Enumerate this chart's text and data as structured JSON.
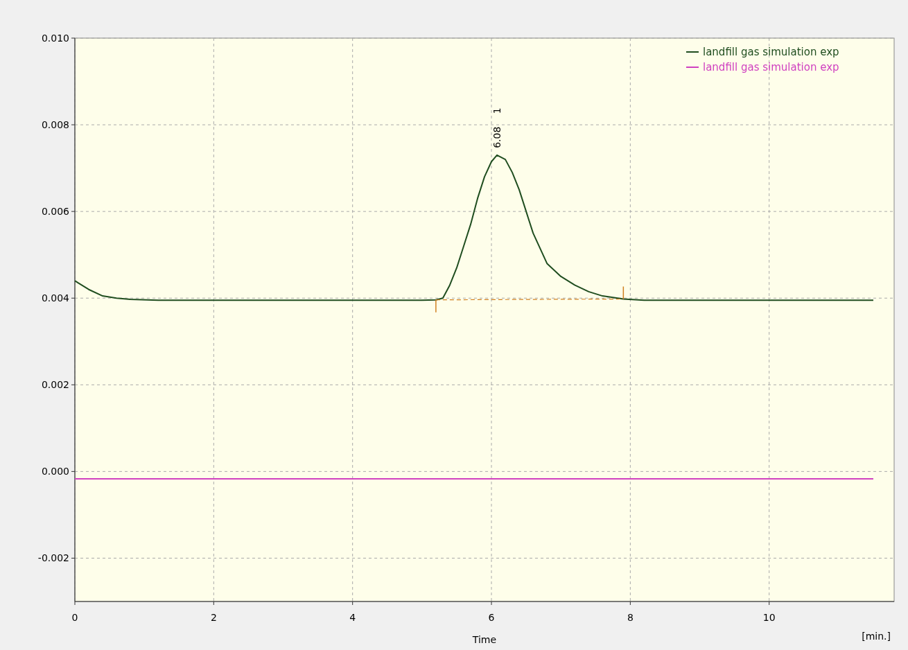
{
  "chart_data": {
    "type": "line",
    "xlabel": "Time",
    "xlim": [
      0,
      11.8
    ],
    "xticks": [
      0,
      2,
      4,
      6,
      8,
      10
    ],
    "ylim": [
      -0.003,
      0.01
    ],
    "yticks": [
      {
        "value": -0.002,
        "label": "-0.002"
      },
      {
        "value": 0,
        "label": "0.000"
      },
      {
        "value": 0.002,
        "label": "0.002"
      },
      {
        "value": 0.004,
        "label": "0.004"
      },
      {
        "value": 0.006,
        "label": "0.006"
      },
      {
        "value": 0.008,
        "label": "0.008"
      },
      {
        "value": 0.01,
        "label": "0.010"
      }
    ],
    "grid": true,
    "legend": "top right",
    "marker": "none",
    "annotations": [
      "6.08 1",
      "[min.]"
    ],
    "series": [
      {
        "name": "landfill gas simulation exp",
        "color": "#1f4d1f",
        "x": [
          0,
          0.05,
          0.2,
          0.4,
          0.6,
          0.8,
          1.2,
          2,
          3,
          4,
          5,
          5.2,
          5.3,
          5.4,
          5.5,
          5.6,
          5.7,
          5.8,
          5.9,
          6,
          6.08,
          6.2,
          6.3,
          6.4,
          6.5,
          6.6,
          6.8,
          7,
          7.2,
          7.4,
          7.6,
          7.9,
          8.2,
          9,
          10,
          11.5
        ],
        "values": [
          0.0044,
          0.00435,
          0.0042,
          0.00405,
          0.004,
          0.00397,
          0.00395,
          0.00395,
          0.00395,
          0.00395,
          0.00395,
          0.00396,
          0.004,
          0.0043,
          0.0047,
          0.0052,
          0.0057,
          0.0063,
          0.0068,
          0.00715,
          0.0073,
          0.0072,
          0.0069,
          0.0065,
          0.006,
          0.0055,
          0.0048,
          0.0045,
          0.0043,
          0.00415,
          0.00405,
          0.00398,
          0.00395,
          0.00395,
          0.00395,
          0.00395
        ]
      },
      {
        "name": "landfill gas simulation exp",
        "color": "#d040c0",
        "x": [
          0,
          11.5
        ],
        "values": [
          -0.00017,
          -0.00017
        ]
      },
      {
        "type": "line",
        "line_style": "dashed",
        "color": "#d08020",
        "x": [
          5.2,
          7.9
        ],
        "values": [
          0.00396,
          0.00398
        ]
      }
    ]
  }
}
